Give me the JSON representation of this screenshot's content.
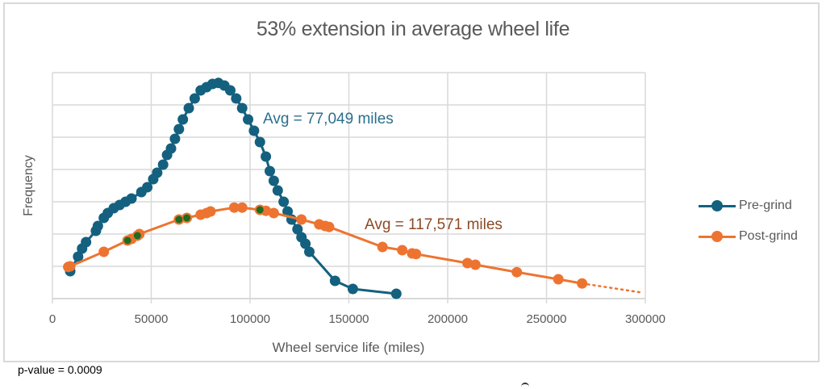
{
  "chart_data": {
    "type": "line",
    "title": "53% extension in average wheel life",
    "xlabel": "Wheel service life (miles)",
    "ylabel": "Frequency",
    "xlim": [
      0,
      300000
    ],
    "ylim": [
      0,
      7
    ],
    "x_ticks": [
      "0",
      "50000",
      "100000",
      "150000",
      "200000",
      "250000",
      "300000"
    ],
    "x_tick_values": [
      0,
      50000,
      100000,
      150000,
      200000,
      250000,
      300000
    ],
    "y_ticks_labeled": false,
    "grid": true,
    "legend_position": "right",
    "colors": {
      "pre": "#14607f",
      "post": "#ed7430",
      "highlight": "#1e6b22",
      "grid": "#d9d9d9",
      "pre_text": "#2a6f8f",
      "post_text": "#8b4a26"
    },
    "series": [
      {
        "name": "Pre-grind",
        "key": "pre",
        "points": [
          [
            9000,
            0.85
          ],
          [
            13000,
            1.3
          ],
          [
            15000,
            1.55
          ],
          [
            17000,
            1.75
          ],
          [
            22000,
            2.1
          ],
          [
            23000,
            2.25
          ],
          [
            26000,
            2.5
          ],
          [
            28000,
            2.65
          ],
          [
            31000,
            2.8
          ],
          [
            34000,
            2.9
          ],
          [
            37000,
            3.0
          ],
          [
            40000,
            3.1
          ],
          [
            45000,
            3.3
          ],
          [
            48000,
            3.45
          ],
          [
            51000,
            3.7
          ],
          [
            53000,
            3.9
          ],
          [
            56000,
            4.15
          ],
          [
            58000,
            4.45
          ],
          [
            60000,
            4.65
          ],
          [
            62000,
            4.95
          ],
          [
            64000,
            5.25
          ],
          [
            66000,
            5.55
          ],
          [
            69000,
            5.9
          ],
          [
            72000,
            6.2
          ],
          [
            75000,
            6.45
          ],
          [
            78000,
            6.55
          ],
          [
            81000,
            6.65
          ],
          [
            84000,
            6.68
          ],
          [
            87000,
            6.6
          ],
          [
            90000,
            6.45
          ],
          [
            93000,
            6.2
          ],
          [
            96000,
            5.9
          ],
          [
            99000,
            5.55
          ],
          [
            102000,
            5.2
          ],
          [
            105000,
            4.85
          ],
          [
            108000,
            4.4
          ],
          [
            110000,
            3.95
          ],
          [
            112000,
            3.65
          ],
          [
            114000,
            3.35
          ],
          [
            117000,
            3.0
          ],
          [
            119000,
            2.7
          ],
          [
            121000,
            2.45
          ],
          [
            124000,
            2.15
          ],
          [
            126000,
            1.9
          ],
          [
            128000,
            1.7
          ],
          [
            130000,
            1.45
          ],
          [
            143000,
            0.55
          ],
          [
            152000,
            0.3
          ],
          [
            174000,
            0.15
          ]
        ],
        "annotation": "Avg = 77,049 miles",
        "mean": 77049
      },
      {
        "name": "Post-grind",
        "key": "post",
        "points": [
          [
            8000,
            0.98
          ],
          [
            9000,
            1.0
          ],
          [
            26000,
            1.45
          ],
          [
            38000,
            1.8
          ],
          [
            40000,
            1.85
          ],
          [
            43000,
            1.95
          ],
          [
            44000,
            2.0
          ],
          [
            64000,
            2.45
          ],
          [
            68000,
            2.5
          ],
          [
            75000,
            2.6
          ],
          [
            78000,
            2.65
          ],
          [
            80000,
            2.7
          ],
          [
            92000,
            2.82
          ],
          [
            96000,
            2.82
          ],
          [
            105000,
            2.75
          ],
          [
            108000,
            2.72
          ],
          [
            112000,
            2.65
          ],
          [
            126000,
            2.45
          ],
          [
            135000,
            2.3
          ],
          [
            138000,
            2.25
          ],
          [
            140000,
            2.22
          ],
          [
            167000,
            1.6
          ],
          [
            177000,
            1.5
          ],
          [
            182000,
            1.4
          ],
          [
            184000,
            1.38
          ],
          [
            210000,
            1.1
          ],
          [
            214000,
            1.05
          ],
          [
            235000,
            0.82
          ],
          [
            256000,
            0.6
          ],
          [
            268000,
            0.47
          ]
        ],
        "highlighted_points": [
          [
            38000,
            1.8
          ],
          [
            43000,
            1.95
          ],
          [
            64000,
            2.45
          ],
          [
            68000,
            2.5
          ],
          [
            105000,
            2.75
          ]
        ],
        "trend_extension": [
          [
            268000,
            0.47
          ],
          [
            299000,
            0.18
          ]
        ],
        "annotation": "Avg = 117,571 miles",
        "mean": 117571
      }
    ]
  },
  "footer": {
    "p_value": "p-value = 0.0009"
  }
}
